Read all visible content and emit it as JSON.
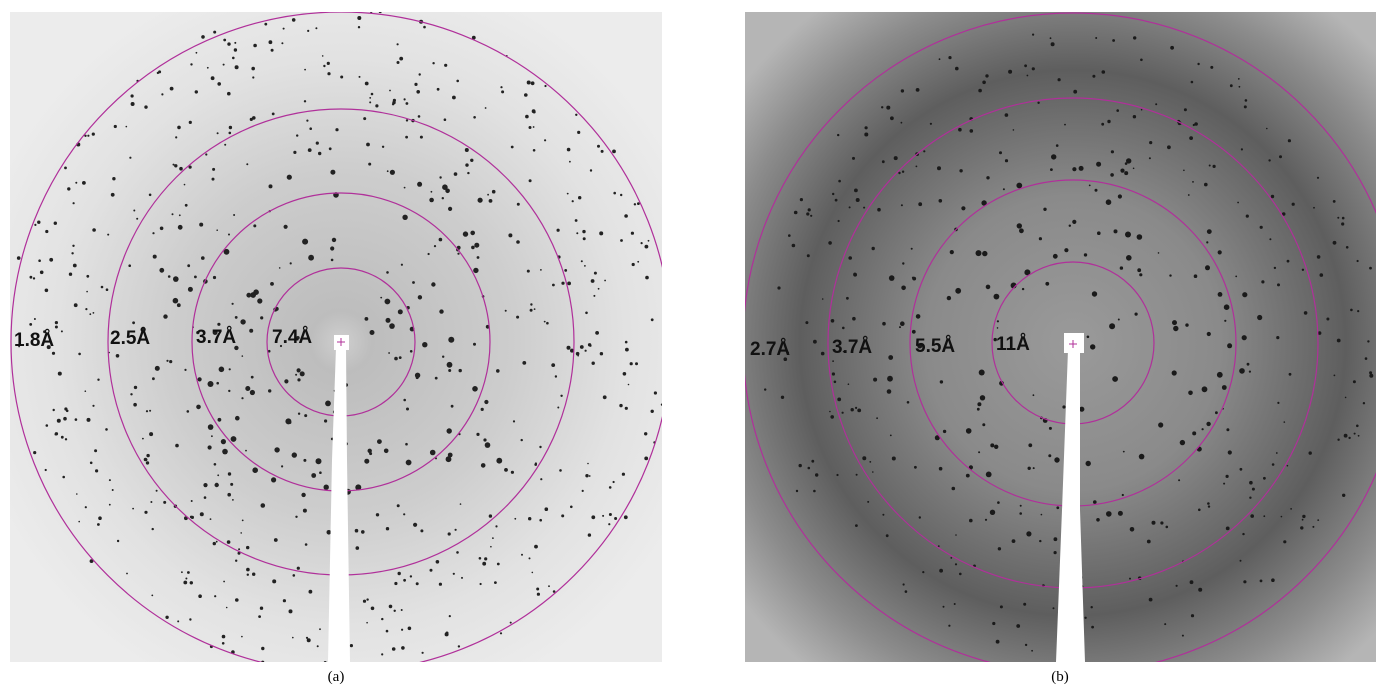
{
  "panels": [
    {
      "caption": "(a)",
      "labels": [
        "1.8Å",
        "2.5Å",
        "3.7Å",
        "7.4Å"
      ]
    },
    {
      "caption": "(b)",
      "labels": [
        "2.7Å",
        "3.7Å",
        "5.5Å",
        "11Å"
      ]
    }
  ]
}
